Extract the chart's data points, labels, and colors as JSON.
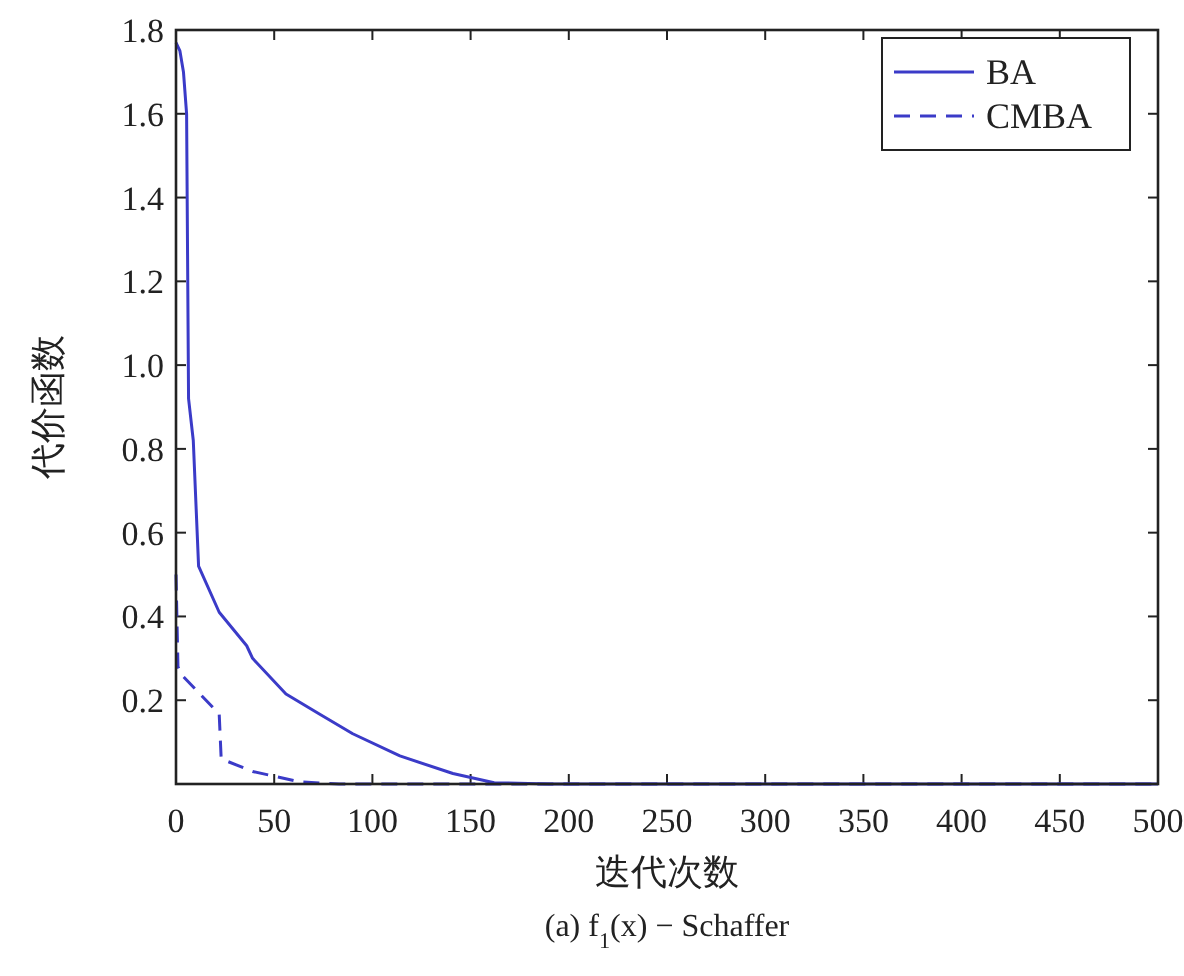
{
  "chart_data": {
    "type": "line",
    "xlabel": "迭代次数",
    "ylabel": "代价函数",
    "annotations": [
      "(a) f$_{1}$(x) − Schaffer"
    ],
    "xlim": [
      0,
      500
    ],
    "xticks": [
      0,
      50,
      100,
      150,
      200,
      250,
      300,
      350,
      400,
      450,
      500
    ],
    "ylim": [
      0,
      1.8
    ],
    "yticks": [
      0.2,
      0.4,
      0.6,
      0.8,
      {
        "value": 1,
        "label": "1.0"
      },
      1.2,
      1.4,
      1.6,
      1.8
    ],
    "grid": false,
    "legend": "top right",
    "series": [
      {
        "name": "BA",
        "color": "#3b3bc8",
        "line_style": "solid",
        "x": [
          0,
          2,
          3.8,
          5.4,
          6.4,
          8.8,
          11.5,
          22,
          36,
          39,
          56,
          73,
          90,
          114,
          141,
          162,
          190,
          500
        ],
        "values": [
          1.77,
          1.75,
          1.7,
          1.6,
          0.92,
          0.82,
          0.52,
          0.41,
          0.33,
          0.3,
          0.215,
          0.167,
          0.12,
          0.067,
          0.025,
          0.003,
          0,
          0
        ]
      },
      {
        "name": "CMBA",
        "color": "#3b3bc8",
        "line_style": "dashed",
        "x": [
          0,
          1,
          3,
          22,
          23,
          39,
          63,
          83,
          500
        ],
        "values": [
          0.5,
          0.28,
          0.26,
          0.167,
          0.06,
          0.03,
          0.005,
          0,
          0
        ]
      }
    ]
  }
}
